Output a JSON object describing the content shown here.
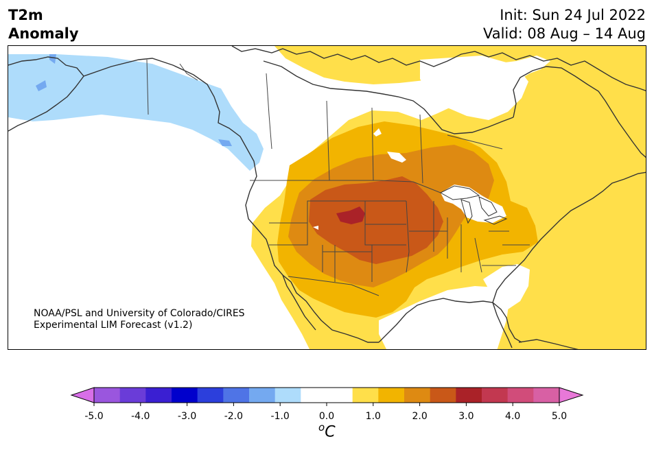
{
  "title": {
    "left_line1": "T2m",
    "left_line2": "Anomaly",
    "right_line1": "Init: Sun 24 Jul 2022",
    "right_line2": "Valid: 08 Aug – 14 Aug"
  },
  "credit": {
    "line1": "NOAA/PSL and University of Colorado/CIRES",
    "line2": "Experimental LIM Forecast (v1.2)"
  },
  "colorbar": {
    "ticks": [
      "-5.0",
      "-4.0",
      "-3.0",
      "-2.0",
      "-1.0",
      "0.0",
      "1.0",
      "2.0",
      "3.0",
      "4.0",
      "5.0"
    ],
    "unit_super": "o",
    "unit": "C",
    "colors": [
      "#d86fe8",
      "#9a56de",
      "#6a3cd8",
      "#3a1fd2",
      "#0000cc",
      "#2c3fdc",
      "#4f74e6",
      "#74a9f0",
      "#aedcfb",
      "#ffffff",
      "#ffffff",
      "#ffdf4a",
      "#f2b400",
      "#de8a12",
      "#c95818",
      "#aa2228",
      "#c23850",
      "#d14c7a",
      "#d860a4",
      "#e878d8"
    ],
    "min_color": "#d86fe8",
    "max_color": "#e878d8"
  },
  "legend_colors": {
    "light_blue": "#aedcfb",
    "blue": "#74a9f0",
    "yellow": "#ffdf4a",
    "gold": "#f2b400",
    "orange": "#de8a12",
    "dark_orange": "#c95818",
    "red": "#aa2228"
  }
}
